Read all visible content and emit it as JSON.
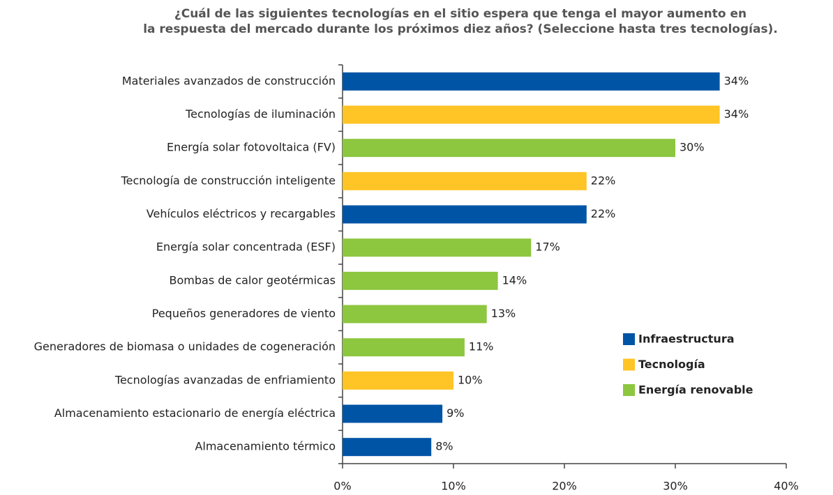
{
  "chart_data": {
    "type": "bar",
    "orientation": "horizontal",
    "title": [
      "¿Cuál de las siguientes tecnologías en el sitio espera que tenga el mayor aumento en",
      "la respuesta del mercado durante los próximos diez años? (Seleccione hasta tres tecnologías)."
    ],
    "categories": [
      "Materiales avanzados de construcción",
      "Tecnologías de iluminación",
      "Energía solar fotovoltaica (FV)",
      "Tecnología de construcción inteligente",
      "Vehículos eléctricos y recargables",
      "Energía solar concentrada (ESF)",
      "Bombas de calor geotérmicas",
      "Pequeños generadores de viento",
      "Generadores de biomasa o unidades de cogeneración",
      "Tecnologías avanzadas de enfriamiento",
      "Almacenamiento estacionario de energía eléctrica",
      "Almacenamiento térmico"
    ],
    "series": [
      {
        "name": "Infraestructura",
        "color": "#0054a6",
        "values": [
          34,
          null,
          null,
          null,
          22,
          null,
          null,
          null,
          null,
          null,
          9,
          8
        ],
        "value_labels": [
          "34%",
          null,
          null,
          null,
          "22%",
          null,
          null,
          null,
          null,
          null,
          "9%",
          "8%"
        ]
      },
      {
        "name": "Tecnología",
        "color": "#ffc425",
        "values": [
          null,
          34,
          null,
          22,
          null,
          null,
          null,
          null,
          null,
          10,
          null,
          null
        ],
        "value_labels": [
          null,
          "34%",
          null,
          "22%",
          null,
          null,
          null,
          null,
          null,
          "10%",
          null,
          null
        ]
      },
      {
        "name": "Energía renovable",
        "color": "#8dc63f",
        "values": [
          null,
          null,
          30,
          null,
          null,
          17,
          14,
          13,
          11,
          null,
          null,
          null
        ],
        "value_labels": [
          null,
          null,
          "30%",
          null,
          null,
          "17%",
          "14%",
          "13%",
          "11%",
          null,
          null,
          null
        ]
      }
    ],
    "xlim": [
      0,
      40
    ],
    "xticks": [
      {
        "value": 0,
        "label": "0%"
      },
      {
        "value": 10,
        "label": "10%"
      },
      {
        "value": 20,
        "label": "20%"
      },
      {
        "value": 30,
        "label": "30%"
      },
      {
        "value": 40,
        "label": "40%"
      }
    ],
    "legend": "right"
  }
}
